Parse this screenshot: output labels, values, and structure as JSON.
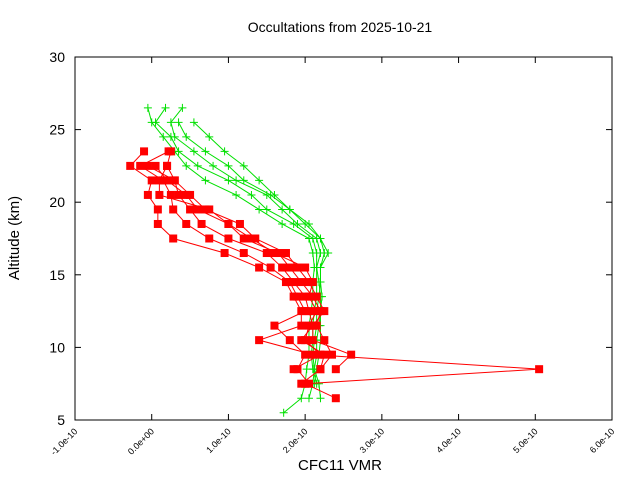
{
  "chart_data": {
    "type": "line",
    "title": "Occultations from 2025-10-21",
    "xlabel": "CFC11 VMR",
    "ylabel": "Altitude (km)",
    "xlim": [
      -1e-10,
      6e-10
    ],
    "ylim": [
      5,
      30
    ],
    "xticks": [
      -1e-10,
      0,
      1e-10,
      2e-10,
      3e-10,
      4e-10,
      5e-10,
      6e-10
    ],
    "xtick_labels": [
      "-1.0e-10",
      "0.0e+00",
      "1.0e-10",
      "2.0e-10",
      "3.0e-10",
      "4.0e-10",
      "5.0e-10",
      "6.0e-10"
    ],
    "yticks": [
      5,
      10,
      15,
      20,
      25,
      30
    ],
    "ytick_labels": [
      "5",
      "10",
      "15",
      "20",
      "25",
      "30"
    ],
    "grid": false,
    "colors": {
      "red_series": "#ff0000",
      "green_series": "#00e000"
    },
    "red_altitudes": [
      23.5,
      22.5,
      21.5,
      20.5,
      19.5,
      18.5,
      17.5,
      16.5,
      15.5,
      14.5,
      13.5,
      12.5,
      11.5,
      10.5,
      9.5,
      8.5,
      7.5,
      6.5
    ],
    "red_series": [
      {
        "values": [
          -1e-11,
          -2.8e-11,
          0.0,
          -5e-12,
          8e-12,
          8e-12,
          2.8e-11,
          9.5e-11,
          1.4e-10,
          1.75e-10,
          1.85e-10,
          1.95e-10,
          1.95e-10,
          1.4e-10,
          2.1e-10,
          5.05e-10,
          2e-10,
          2.4e-10
        ]
      },
      {
        "values": [
          2.2e-11,
          -1.5e-11,
          1.5e-11,
          2.5e-11,
          2.8e-11,
          4.5e-11,
          7.5e-11,
          1.2e-10,
          1.55e-10,
          1.8e-10,
          1.9e-10,
          2e-10,
          1.6e-10,
          1.8e-10,
          2e-10,
          1.9e-10,
          2.05e-10,
          null
        ]
      },
      {
        "values": [
          2.5e-11,
          2e-11,
          3e-11,
          3.5e-11,
          5e-11,
          6.5e-11,
          1e-10,
          1.5e-10,
          1.7e-10,
          1.85e-10,
          2e-10,
          2.05e-10,
          2.1e-10,
          1.95e-10,
          2.25e-10,
          2.2e-10,
          1.95e-10,
          null
        ]
      },
      {
        "values": [
          null,
          5e-12,
          2e-11,
          4.5e-11,
          6e-11,
          1e-10,
          1.2e-10,
          1.65e-10,
          1.8e-10,
          1.95e-10,
          2.1e-10,
          2.2e-10,
          2.15e-10,
          2.25e-10,
          2.35e-10,
          2.2e-10,
          null,
          null
        ]
      },
      {
        "values": [
          null,
          -5e-12,
          3e-11,
          5e-11,
          7e-11,
          1.15e-10,
          1.35e-10,
          1.75e-10,
          1.9e-10,
          2.05e-10,
          2.15e-10,
          2.25e-10,
          2.1e-10,
          2.1e-10,
          2.6e-10,
          2.4e-10,
          null,
          null
        ]
      },
      {
        "values": [
          null,
          2e-11,
          1e-11,
          1e-11,
          7.5e-11,
          1e-10,
          1.3e-10,
          1.6e-10,
          2e-10,
          2.1e-10,
          2.05e-10,
          2.15e-10,
          2.05e-10,
          2e-10,
          2.2e-10,
          1.85e-10,
          null,
          null
        ]
      }
    ],
    "green_altitudes": [
      26.5,
      25.5,
      24.5,
      23.5,
      22.5,
      21.5,
      20.5,
      19.5,
      18.5,
      17.5,
      16.5,
      15.5,
      14.5,
      13.5,
      12.5,
      11.5,
      10.5,
      9.5,
      8.5,
      7.5,
      6.5,
      5.5
    ],
    "green_series": [
      {
        "values": [
          -5e-12,
          0.0,
          1.5e-11,
          3e-11,
          4.5e-11,
          7e-11,
          1.1e-10,
          1.4e-10,
          1.7e-10,
          2.05e-10,
          2.1e-10,
          2.12e-10,
          2.1e-10,
          2.1e-10,
          2.08e-10,
          2.05e-10,
          2.05e-10,
          2.05e-10,
          2.02e-10,
          2e-10,
          1.95e-10,
          1.72e-10
        ]
      },
      {
        "values": [
          1.8e-11,
          5e-12,
          2.5e-11,
          3.5e-11,
          6e-11,
          1e-10,
          1.3e-10,
          1.5e-10,
          1.85e-10,
          2.1e-10,
          2.15e-10,
          2.15e-10,
          2.15e-10,
          2.15e-10,
          2.12e-10,
          2.1e-10,
          2.1e-10,
          2.08e-10,
          2.1e-10,
          2.15e-10,
          null,
          null
        ]
      },
      {
        "values": [
          4e-11,
          2.5e-11,
          3e-11,
          5.5e-11,
          8e-11,
          1.1e-10,
          1.5e-10,
          1.7e-10,
          1.9e-10,
          2.15e-10,
          2.2e-10,
          2.15e-10,
          2.18e-10,
          2.2e-10,
          2.2e-10,
          2.18e-10,
          2.15e-10,
          2.15e-10,
          2.12e-10,
          2.1e-10,
          2.05e-10,
          null
        ]
      },
      {
        "values": [
          null,
          3.5e-11,
          4.5e-11,
          7e-11,
          1e-10,
          1.2e-10,
          1.55e-10,
          1.8e-10,
          2e-10,
          2.2e-10,
          2.3e-10,
          2.2e-10,
          2.2e-10,
          2.22e-10,
          2.2e-10,
          2.2e-10,
          2.2e-10,
          2.18e-10,
          2.15e-10,
          2.12e-10,
          null,
          null
        ]
      },
      {
        "values": [
          null,
          5.5e-11,
          7.5e-11,
          9.5e-11,
          1.2e-10,
          1.4e-10,
          1.6e-10,
          1.8e-10,
          2.05e-10,
          2.2e-10,
          2.25e-10,
          2.2e-10,
          2.2e-10,
          2.18e-10,
          2.15e-10,
          2.15e-10,
          2.12e-10,
          2.1e-10,
          2.12e-10,
          2.18e-10,
          2.2e-10,
          null
        ]
      }
    ]
  }
}
